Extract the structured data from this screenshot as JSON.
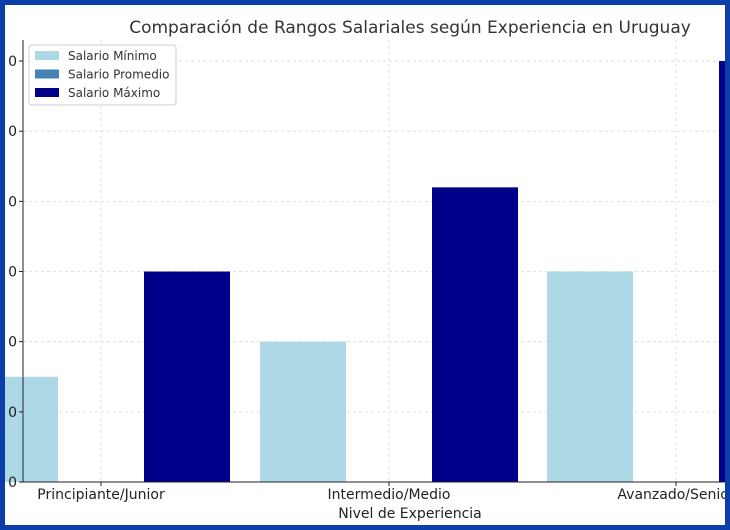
{
  "chart_data": {
    "type": "bar",
    "title": "Comparación de Rangos Salariales según Experiencia en Uruguay",
    "xlabel": "Nivel de Experiencia",
    "ylabel": "",
    "categories": [
      "Principiante/Junior",
      "Intermedio/Medio",
      "Avanzado/Senior"
    ],
    "series": [
      {
        "name": "Salario Mínimo",
        "color": "#add8e6",
        "values": [
          1.5,
          2.0,
          3.0
        ]
      },
      {
        "name": "Salario Promedio",
        "color": "#4682b4",
        "values": [
          null,
          null,
          null
        ]
      },
      {
        "name": "Salario Máximo",
        "color": "#00008b",
        "values": [
          3.0,
          4.2,
          6.0
        ]
      }
    ],
    "ylim": [
      0,
      6.3
    ],
    "yticks": [
      "0",
      "0",
      "0",
      "0",
      "0",
      "0",
      "0"
    ],
    "grid": true,
    "legend": "top-left"
  }
}
